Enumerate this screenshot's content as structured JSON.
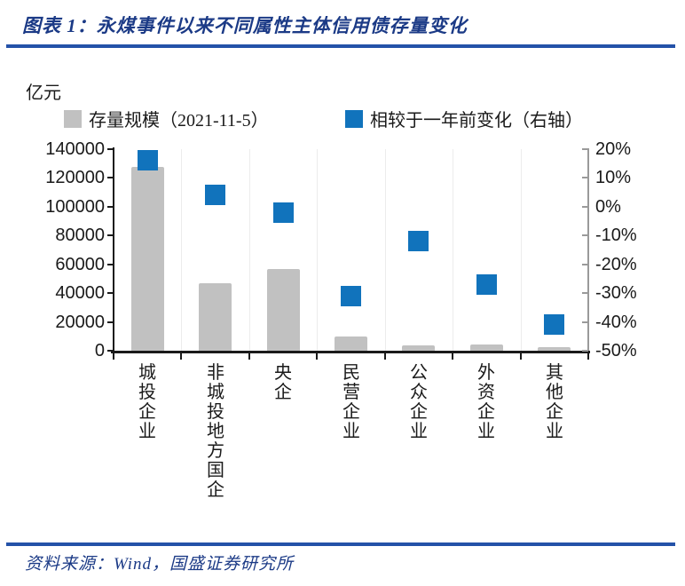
{
  "header": {
    "title": "图表 1：永煤事件以来不同属性主体信用债存量变化"
  },
  "chart_data": {
    "type": "bar",
    "subtype": "dual-axis bar + square scatter markers",
    "unit_label": "亿元",
    "legend": [
      {
        "label": "存量规模（2021-11-5）",
        "marker": "square",
        "color": "#c1c1c1"
      },
      {
        "label": "相较于一年前变化（右轴）",
        "marker": "square",
        "color": "#1173bc"
      }
    ],
    "categories": [
      "城投企业",
      "非城投地方国企",
      "央企",
      "民营企业",
      "公众企业",
      "外资企业",
      "其他企业"
    ],
    "series": [
      {
        "name": "存量规模（2021-11-5）",
        "axis": "left",
        "unit": "亿元",
        "values": [
          127500,
          47000,
          56500,
          9700,
          3800,
          4200,
          2600
        ]
      },
      {
        "name": "相较于一年前变化（右轴）",
        "axis": "right",
        "unit": "%",
        "values": [
          16,
          4,
          -2,
          -31,
          -12,
          -27,
          -41
        ]
      }
    ],
    "left_axis": {
      "min": 0,
      "max": 140000,
      "tick_labels": [
        "140000",
        "120000",
        "100000",
        "80000",
        "60000",
        "40000",
        "20000",
        "0"
      ]
    },
    "right_axis": {
      "min": -50,
      "max": 20,
      "tick_labels": [
        "20%",
        "10%",
        "0%",
        "-10%",
        "-20%",
        "-30%",
        "-40%",
        "-50%"
      ]
    },
    "grid": "faint vertical lines at category boundaries",
    "legend_position": "top"
  },
  "footer": {
    "source": "资料来源：Wind，国盛证券研究所"
  },
  "colors": {
    "title_navy": "#1b3a86",
    "rule_blue": "#2452a8",
    "bar_gray": "#c1c1c1",
    "marker_blue": "#1173bc",
    "axis_black": "#1a1a1a",
    "right_axis_gray": "#9a9a9a"
  }
}
